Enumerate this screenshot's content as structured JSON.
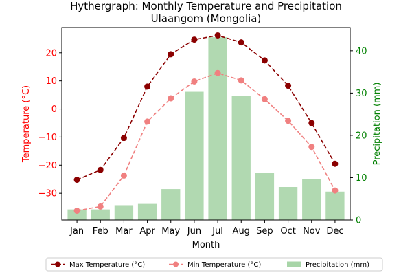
{
  "chart_data": {
    "type": "bar+line",
    "title": "Hythergraph: Monthly Temperature and Precipitation",
    "subtitle": "Ulaangom (Mongolia)",
    "xlabel": "Month",
    "ylabel_left": "Temperature (°C)",
    "ylabel_right": "Precipitation (mm)",
    "categories": [
      "Jan",
      "Feb",
      "Mar",
      "Apr",
      "May",
      "Jun",
      "Jul",
      "Aug",
      "Sep",
      "Oct",
      "Nov",
      "Dec"
    ],
    "ylim_left": [
      -39.5,
      29
    ],
    "ylim_right": [
      0,
      45.5
    ],
    "yticks_left": [
      -30,
      -20,
      -10,
      0,
      10,
      20
    ],
    "yticks_right": [
      0,
      10,
      20,
      30,
      40
    ],
    "grid": false,
    "legend_position": "bottom-center",
    "series": [
      {
        "name": "Max Temperature (°C)",
        "kind": "line",
        "axis": "left",
        "color": "#8b0000",
        "style": "dashed",
        "marker": "circle",
        "values": [
          -25.2,
          -21.7,
          -10.3,
          8.0,
          19.5,
          24.7,
          26.2,
          23.7,
          17.3,
          8.3,
          -5.0,
          -19.5
        ]
      },
      {
        "name": "Min Temperature (°C)",
        "kind": "line",
        "axis": "left",
        "color": "#f08080",
        "style": "dashed",
        "marker": "circle",
        "values": [
          -36.2,
          -34.7,
          -23.7,
          -4.5,
          3.8,
          9.8,
          12.8,
          10.2,
          3.5,
          -4.2,
          -13.5,
          -29.0
        ]
      },
      {
        "name": "Precipitation (mm)",
        "kind": "bar",
        "axis": "right",
        "color": "#a8d5a8",
        "values": [
          2.5,
          2.5,
          3.5,
          3.8,
          7.3,
          30.3,
          43.2,
          29.4,
          11.2,
          7.8,
          9.6,
          6.7
        ]
      }
    ],
    "colors": {
      "left_axis": "#ff0000",
      "right_axis": "#008000"
    }
  }
}
